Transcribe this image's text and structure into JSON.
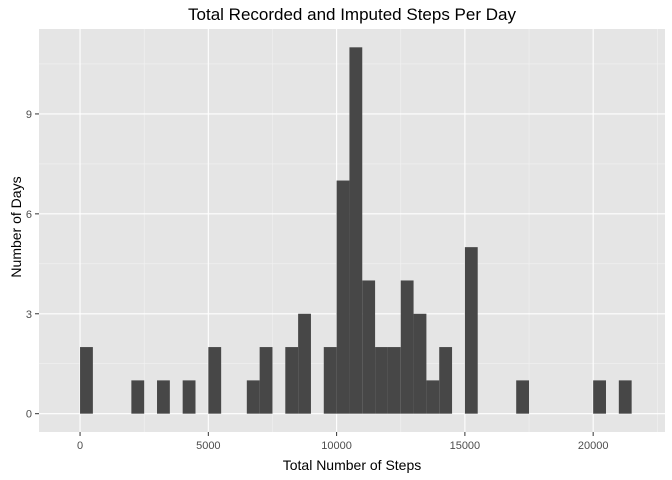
{
  "chart_data": {
    "type": "bar",
    "title": "Total Recorded  and Imputed Steps Per Day",
    "xlabel": "Total Number of Steps",
    "ylabel": "Number of Days",
    "xlim": [
      -1600,
      22800
    ],
    "ylim": [
      -0.55,
      11.55
    ],
    "bin_width": 500,
    "x_ticks": [
      0,
      5000,
      10000,
      15000,
      20000
    ],
    "x_tick_labels": [
      "0",
      "5000",
      "10000",
      "15000",
      "20000"
    ],
    "y_ticks": [
      0,
      3,
      6,
      9
    ],
    "y_tick_labels": [
      "0",
      "3",
      "6",
      "9"
    ],
    "grid": true,
    "bins": [
      {
        "x": 250,
        "count": 2
      },
      {
        "x": 2250,
        "count": 1
      },
      {
        "x": 3250,
        "count": 1
      },
      {
        "x": 4250,
        "count": 1
      },
      {
        "x": 5250,
        "count": 2
      },
      {
        "x": 6750,
        "count": 1
      },
      {
        "x": 7250,
        "count": 2
      },
      {
        "x": 8250,
        "count": 2
      },
      {
        "x": 8750,
        "count": 3
      },
      {
        "x": 9750,
        "count": 2
      },
      {
        "x": 10250,
        "count": 7
      },
      {
        "x": 10750,
        "count": 11
      },
      {
        "x": 11250,
        "count": 4
      },
      {
        "x": 11750,
        "count": 2
      },
      {
        "x": 12250,
        "count": 2
      },
      {
        "x": 12750,
        "count": 4
      },
      {
        "x": 13250,
        "count": 3
      },
      {
        "x": 13750,
        "count": 1
      },
      {
        "x": 14250,
        "count": 2
      },
      {
        "x": 15250,
        "count": 5
      },
      {
        "x": 17250,
        "count": 1
      },
      {
        "x": 20250,
        "count": 1
      },
      {
        "x": 21250,
        "count": 1
      }
    ],
    "colors": {
      "panel": "#e5e5e5",
      "grid_major": "#ffffff",
      "grid_minor": "#f2f2f2",
      "bar": "#474747",
      "tick": "#333333"
    }
  }
}
